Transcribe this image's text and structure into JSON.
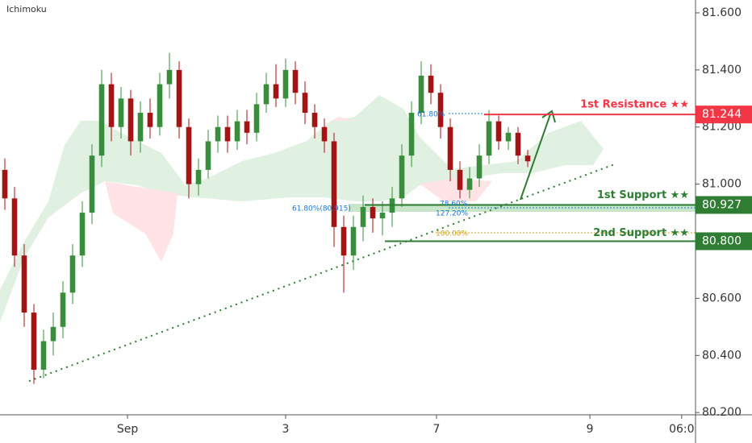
{
  "chart_data": {
    "type": "candlestick",
    "indicator": "Ichimoku",
    "x": [
      0,
      1,
      2,
      3,
      4,
      5,
      6,
      7,
      8,
      9,
      10,
      11,
      12,
      13,
      14,
      15,
      16,
      17,
      18,
      19,
      20,
      21,
      22,
      23,
      24,
      25,
      26,
      27,
      28,
      29,
      30,
      31,
      32,
      33,
      34,
      35,
      36,
      37,
      38,
      39,
      40,
      41,
      42,
      43,
      44,
      45,
      46,
      47,
      48,
      49,
      50,
      51,
      52,
      53,
      54
    ],
    "open": [
      81.05,
      80.95,
      80.75,
      80.55,
      80.35,
      80.45,
      80.5,
      80.62,
      80.75,
      80.9,
      81.1,
      81.35,
      81.2,
      81.3,
      81.15,
      81.25,
      81.2,
      81.35,
      81.4,
      81.2,
      81.0,
      81.05,
      81.15,
      81.2,
      81.15,
      81.22,
      81.18,
      81.28,
      81.35,
      81.3,
      81.4,
      81.32,
      81.25,
      81.2,
      81.15,
      80.85,
      80.75,
      80.85,
      80.92,
      80.88,
      80.9,
      80.95,
      81.1,
      81.25,
      81.38,
      81.32,
      81.2,
      81.05,
      80.98,
      81.02,
      81.1,
      81.22,
      81.15,
      81.18,
      81.1
    ],
    "high": [
      81.09,
      80.99,
      80.79,
      80.58,
      80.49,
      80.55,
      80.66,
      80.79,
      80.94,
      81.14,
      81.4,
      81.39,
      81.34,
      81.33,
      81.29,
      81.3,
      81.39,
      81.46,
      81.43,
      81.23,
      81.09,
      81.19,
      81.24,
      81.24,
      81.26,
      81.26,
      81.32,
      81.39,
      81.42,
      81.44,
      81.43,
      81.36,
      81.28,
      81.23,
      81.18,
      80.89,
      80.89,
      80.96,
      80.95,
      80.94,
      80.99,
      81.14,
      81.29,
      81.43,
      81.42,
      81.35,
      81.23,
      81.08,
      81.06,
      81.14,
      81.26,
      81.24,
      81.2,
      81.2,
      81.12
    ],
    "low": [
      80.91,
      80.71,
      80.5,
      80.3,
      80.32,
      80.4,
      80.46,
      80.58,
      80.71,
      80.86,
      81.06,
      81.15,
      81.16,
      81.1,
      81.11,
      81.16,
      81.17,
      81.3,
      81.16,
      80.95,
      80.96,
      81.02,
      81.11,
      81.11,
      81.12,
      81.14,
      81.15,
      81.25,
      81.27,
      81.27,
      81.28,
      81.21,
      81.16,
      81.11,
      80.78,
      80.62,
      80.7,
      80.8,
      80.83,
      80.82,
      80.85,
      80.92,
      81.06,
      81.21,
      81.28,
      81.16,
      81.01,
      80.95,
      80.95,
      80.99,
      81.07,
      81.12,
      81.12,
      81.07,
      81.06
    ],
    "close": [
      80.95,
      80.75,
      80.55,
      80.35,
      80.45,
      80.5,
      80.62,
      80.75,
      80.9,
      81.1,
      81.35,
      81.2,
      81.3,
      81.15,
      81.25,
      81.2,
      81.35,
      81.4,
      81.2,
      81.0,
      81.05,
      81.15,
      81.2,
      81.15,
      81.22,
      81.18,
      81.28,
      81.35,
      81.3,
      81.4,
      81.32,
      81.25,
      81.2,
      81.15,
      80.85,
      80.75,
      80.85,
      80.92,
      80.88,
      80.9,
      80.95,
      81.1,
      81.25,
      81.38,
      81.32,
      81.2,
      81.05,
      80.98,
      81.02,
      81.1,
      81.22,
      81.15,
      81.18,
      81.1,
      81.08
    ],
    "up_color": "#388e3c",
    "down_color": "#a31515",
    "xlim": [
      -0.5,
      71.33
    ],
    "ylim": [
      80.192,
      81.645
    ],
    "xticks": [
      {
        "value": 12.67,
        "label": "Sep"
      },
      {
        "value": 29,
        "label": "3"
      },
      {
        "value": 44.58,
        "label": "7"
      },
      {
        "value": 60.42,
        "label": "9"
      },
      {
        "value": 69.9,
        "label": "06:0"
      }
    ],
    "yticks": [
      {
        "value": 80.2,
        "label": "80.200"
      },
      {
        "value": 80.4,
        "label": "80.400"
      },
      {
        "value": 80.6,
        "label": "80.600"
      },
      {
        "value": 80.8,
        "label": "80.800"
      },
      {
        "value": 81.0,
        "label": "81.000"
      },
      {
        "value": 81.2,
        "label": "81.200"
      },
      {
        "value": 81.4,
        "label": "81.400"
      },
      {
        "value": 81.6,
        "label": "81.600"
      }
    ],
    "levels": [
      {
        "name": "1st Resistance ★★",
        "value": 81.244,
        "color": "#f23645"
      },
      {
        "name": "1st Support ★★",
        "value": 80.927,
        "color": "#2e7d32"
      },
      {
        "name": "2nd Support ★★",
        "value": {
          "value": 80.8,
          "label": "80.800"
        },
        "color": "#2e7d32"
      }
    ],
    "trendline": {
      "x": [
        2.5,
        63
      ],
      "y": [
        80.31,
        81.07
      ],
      "color": "#2e7d32"
    },
    "fib_labels": [
      "61.80%",
      "61.80%(80.915)",
      "78.60%",
      "127.20%",
      "100.00%"
    ]
  }
}
